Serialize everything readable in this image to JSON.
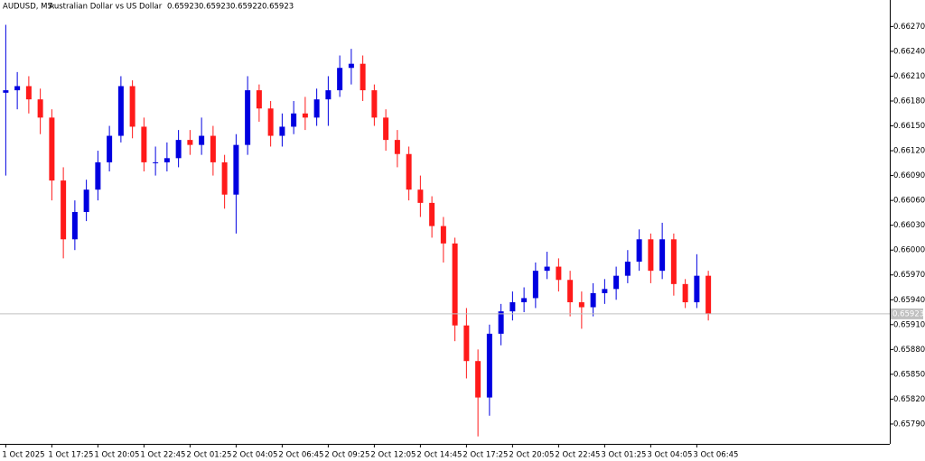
{
  "chart_data": {
    "type": "candlestick",
    "title": "AUDUSD, M5:",
    "subtitle": "Australian Dollar vs US Dollar",
    "header_values": [
      0.65923,
      0.65923,
      0.65922,
      0.65923
    ],
    "current_price": 0.65923,
    "up_color": "#0000e0",
    "down_color": "#ff1a1a",
    "categories": [
      "1 Oct 2025",
      null,
      null,
      null,
      "1 Oct 17:25",
      null,
      null,
      null,
      "1 Oct 20:05",
      null,
      null,
      null,
      "1 Oct 22:45",
      null,
      null,
      null,
      "2 Oct 01:25",
      null,
      null,
      null,
      "2 Oct 04:05",
      null,
      null,
      null,
      "2 Oct 06:45",
      null,
      null,
      null,
      "2 Oct 09:25",
      null,
      null,
      null,
      "2 Oct 12:05",
      null,
      null,
      null,
      "2 Oct 14:45",
      null,
      null,
      null,
      "2 Oct 17:25",
      null,
      null,
      null,
      "2 Oct 20:05",
      null,
      null,
      null,
      "2 Oct 22:45",
      null,
      null,
      null,
      "3 Oct 01:25",
      null,
      null,
      null,
      "3 Oct 04:05",
      null,
      null,
      null,
      "3 Oct 06:45",
      null
    ],
    "open": [
      0.6619,
      0.66193,
      0.66198,
      0.66182,
      0.6616,
      0.66084,
      0.66013,
      0.66046,
      0.66073,
      0.66106,
      0.66138,
      0.66198,
      0.66149,
      0.66106,
      0.66106,
      0.66111,
      0.66133,
      0.66127,
      0.66138,
      0.66106,
      0.66067,
      0.66127,
      0.66193,
      0.66171,
      0.66138,
      0.66149,
      0.66165,
      0.6616,
      0.66182,
      0.66193,
      0.6622,
      0.66225,
      0.66193,
      0.6616,
      0.66133,
      0.66116,
      0.66073,
      0.66057,
      0.66029,
      0.66008,
      0.65909,
      0.65866,
      0.65822,
      0.65899,
      0.65926,
      0.65937,
      0.65942,
      0.65975,
      0.6598,
      0.65964,
      0.65937,
      0.65931,
      0.65948,
      0.65953,
      0.65969,
      0.65986,
      0.66013,
      0.65975,
      0.66013,
      0.65959,
      0.65937,
      0.65969
    ],
    "high": [
      0.66272,
      0.66215,
      0.6621,
      0.66195,
      0.6617,
      0.661,
      0.6606,
      0.66085,
      0.6612,
      0.6615,
      0.6621,
      0.66205,
      0.6616,
      0.66125,
      0.6613,
      0.66145,
      0.66145,
      0.6616,
      0.6615,
      0.66115,
      0.6614,
      0.6621,
      0.662,
      0.6618,
      0.66165,
      0.6618,
      0.66185,
      0.66195,
      0.6621,
      0.66235,
      0.66243,
      0.66235,
      0.662,
      0.6617,
      0.66145,
      0.66125,
      0.6609,
      0.66065,
      0.6604,
      0.66015,
      0.6593,
      0.6588,
      0.6591,
      0.65935,
      0.6595,
      0.65955,
      0.65985,
      0.65998,
      0.6599,
      0.65975,
      0.6595,
      0.6596,
      0.65965,
      0.6598,
      0.66,
      0.66025,
      0.6602,
      0.66033,
      0.6602,
      0.65965,
      0.65995,
      0.65975
    ],
    "low": [
      0.6609,
      0.6617,
      0.66165,
      0.6614,
      0.6606,
      0.6599,
      0.66,
      0.66035,
      0.6606,
      0.66095,
      0.6613,
      0.66135,
      0.66095,
      0.6609,
      0.66095,
      0.661,
      0.66115,
      0.66115,
      0.6609,
      0.6605,
      0.6602,
      0.66115,
      0.66155,
      0.66125,
      0.66125,
      0.6614,
      0.66145,
      0.6615,
      0.6615,
      0.66185,
      0.662,
      0.6618,
      0.6615,
      0.6612,
      0.661,
      0.6606,
      0.6604,
      0.66015,
      0.65985,
      0.6589,
      0.65845,
      0.65775,
      0.658,
      0.65885,
      0.65915,
      0.65925,
      0.6593,
      0.65965,
      0.6595,
      0.6592,
      0.65905,
      0.6592,
      0.65935,
      0.6594,
      0.6596,
      0.65975,
      0.6596,
      0.65965,
      0.65945,
      0.6593,
      0.6593,
      0.65915
    ],
    "close": [
      0.66193,
      0.66198,
      0.66182,
      0.6616,
      0.66084,
      0.66013,
      0.66046,
      0.66073,
      0.66106,
      0.66138,
      0.66198,
      0.66149,
      0.66106,
      0.66106,
      0.66111,
      0.66133,
      0.66127,
      0.66138,
      0.66106,
      0.66067,
      0.66127,
      0.66193,
      0.66171,
      0.66138,
      0.66149,
      0.66165,
      0.6616,
      0.66182,
      0.66193,
      0.6622,
      0.66225,
      0.66193,
      0.6616,
      0.66133,
      0.66116,
      0.66073,
      0.66057,
      0.66029,
      0.66008,
      0.65909,
      0.65866,
      0.65822,
      0.65899,
      0.65926,
      0.65937,
      0.65942,
      0.65975,
      0.6598,
      0.65964,
      0.65937,
      0.65931,
      0.65948,
      0.65953,
      0.65969,
      0.65986,
      0.66013,
      0.65975,
      0.66013,
      0.65959,
      0.65937,
      0.65969,
      0.65923
    ],
    "ylim": [
      0.65766,
      0.66302
    ],
    "yticks": [
      {
        "value": 0.6627,
        "label": "0.66270"
      },
      {
        "value": 0.6624,
        "label": "0.66240"
      },
      {
        "value": 0.6621,
        "label": "0.66210"
      },
      {
        "value": 0.6618,
        "label": "0.66180"
      },
      {
        "value": 0.6615,
        "label": "0.66150"
      },
      {
        "value": 0.6612,
        "label": "0.66120"
      },
      {
        "value": 0.6609,
        "label": "0.66090"
      },
      {
        "value": 0.6606,
        "label": "0.66060"
      },
      {
        "value": 0.6603,
        "label": "0.66030"
      },
      {
        "value": 0.66,
        "label": "0.66000"
      },
      {
        "value": 0.6597,
        "label": "0.65970"
      },
      {
        "value": 0.6594,
        "label": "0.65940"
      },
      {
        "value": 0.6591,
        "label": "0.65910"
      },
      {
        "value": 0.6588,
        "label": "0.65880"
      },
      {
        "value": 0.6585,
        "label": "0.65850"
      },
      {
        "value": 0.6582,
        "label": "0.65820"
      },
      {
        "value": 0.6579,
        "label": "0.65790"
      }
    ]
  }
}
